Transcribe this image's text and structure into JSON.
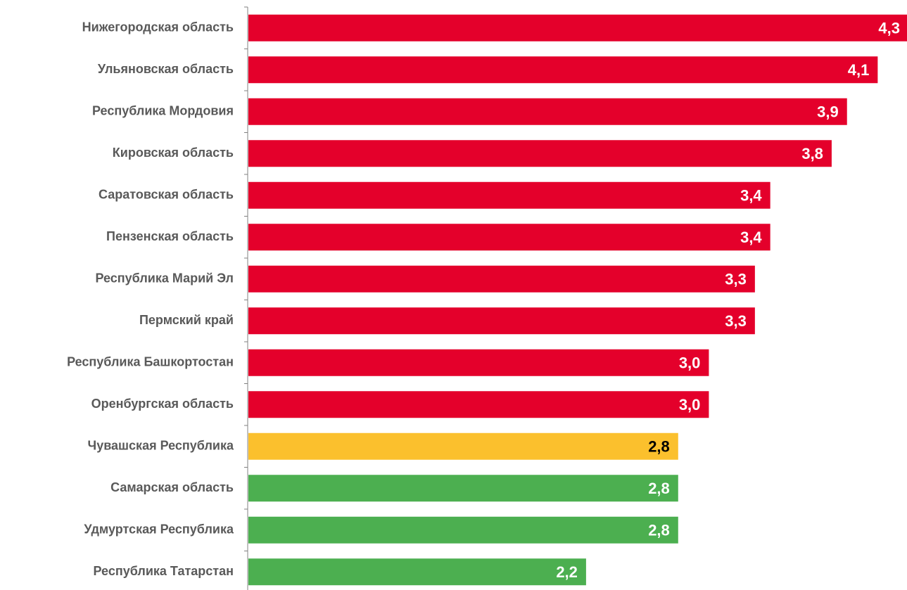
{
  "chart_data": {
    "type": "bar",
    "orientation": "horizontal",
    "categories": [
      "Нижегородская область",
      "Ульяновская область",
      "Республика Мордовия",
      "Кировская область",
      "Саратовская область",
      "Пензенская область",
      "Республика Марий Эл",
      "Пермский край",
      "Республика Башкортостан",
      "Оренбургская область",
      "Чувашская Республика",
      "Самарская область",
      "Удмуртская Республика",
      "Республика Татарстан"
    ],
    "values": [
      4.3,
      4.1,
      3.9,
      3.8,
      3.4,
      3.4,
      3.3,
      3.3,
      3.0,
      3.0,
      2.8,
      2.8,
      2.8,
      2.2
    ],
    "value_labels": [
      "4,3",
      "4,1",
      "3,9",
      "3,8",
      "3,4",
      "3,4",
      "3,3",
      "3,3",
      "3,0",
      "3,0",
      "2,8",
      "2,8",
      "2,8",
      "2,2"
    ],
    "bar_colors": [
      "#e4002b",
      "#e4002b",
      "#e4002b",
      "#e4002b",
      "#e4002b",
      "#e4002b",
      "#e4002b",
      "#e4002b",
      "#e4002b",
      "#e4002b",
      "#fbc02d",
      "#4caf50",
      "#4caf50",
      "#4caf50"
    ],
    "label_colors": [
      "#ffffff",
      "#ffffff",
      "#ffffff",
      "#ffffff",
      "#ffffff",
      "#ffffff",
      "#ffffff",
      "#ffffff",
      "#ffffff",
      "#ffffff",
      "#000000",
      "#ffffff",
      "#ffffff",
      "#ffffff"
    ],
    "title": "",
    "xlabel": "",
    "ylabel": "",
    "xlim": [
      0,
      4.3
    ],
    "grid": false,
    "legend": "none",
    "colors": {
      "high": "#e4002b",
      "medium": "#fbc02d",
      "low": "#4caf50",
      "axis": "#808080",
      "category_text": "#595959"
    }
  }
}
